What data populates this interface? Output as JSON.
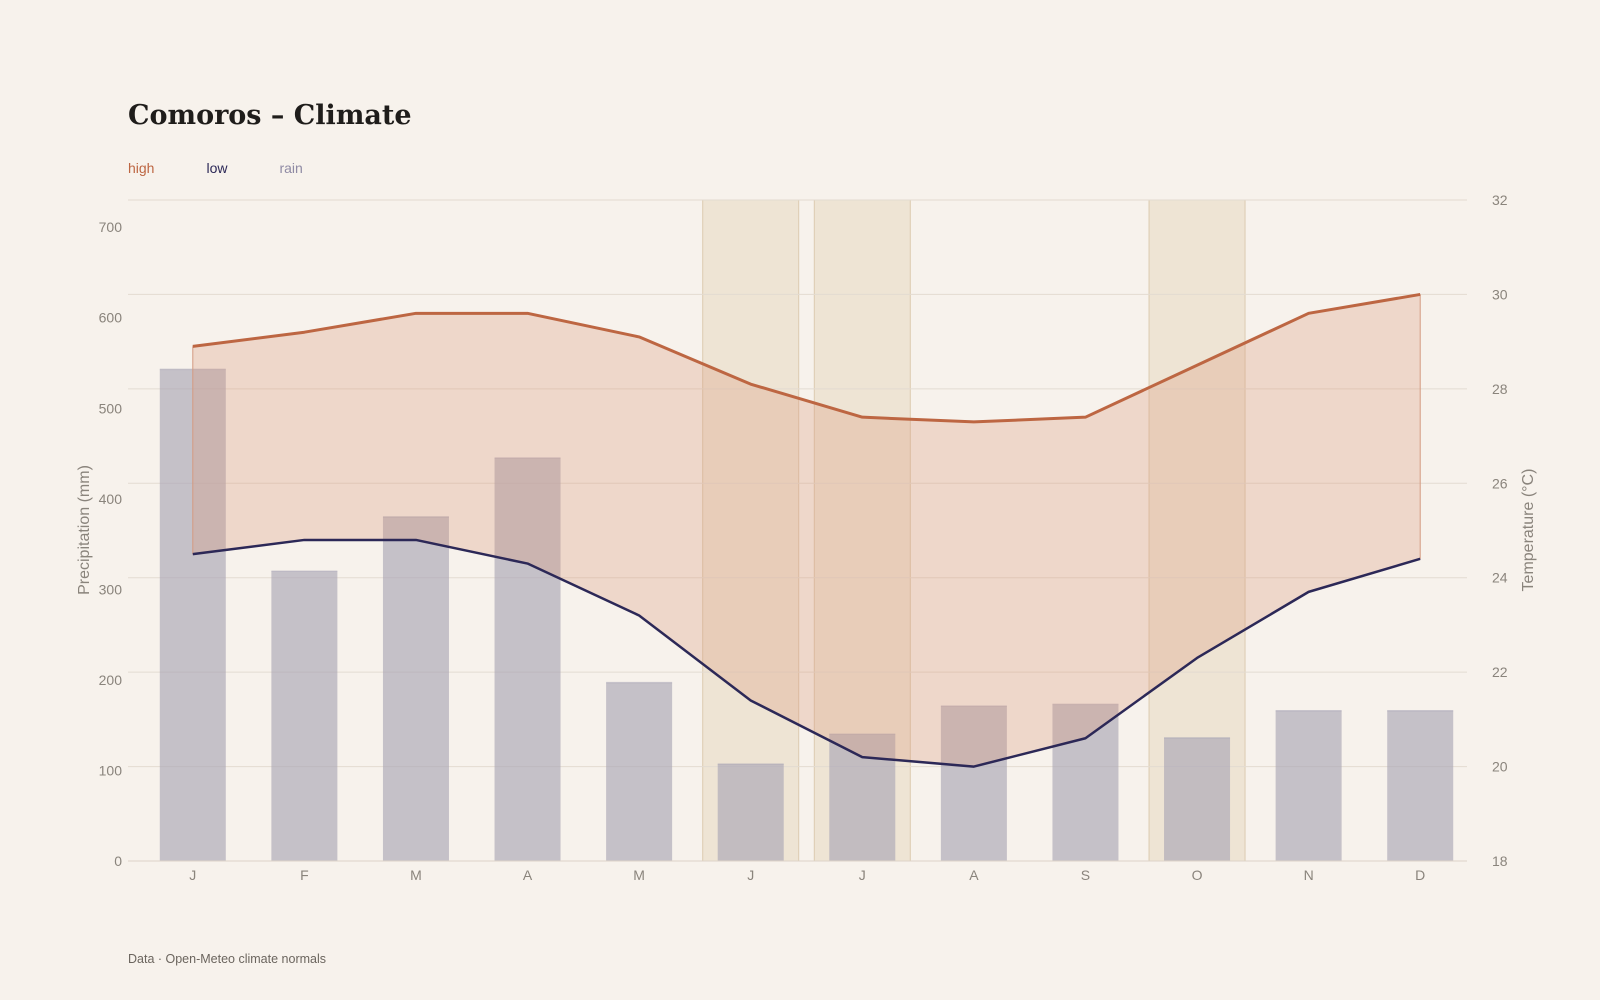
{
  "chart_data": {
    "type": "bar+line",
    "title": "Comoros – Climate",
    "source": "Data · Open-Meteo climate normals",
    "categories": [
      "J",
      "F",
      "M",
      "A",
      "M",
      "J",
      "J",
      "A",
      "S",
      "O",
      "N",
      "D"
    ],
    "legend": [
      "high",
      "low",
      "rain"
    ],
    "legend_placement": "top-left",
    "series": [
      {
        "name": "rain",
        "type": "bar",
        "axis": "left",
        "color": "#aaa6b6",
        "values": [
          543,
          320,
          380,
          445,
          197,
          107,
          140,
          171,
          173,
          136,
          166,
          166
        ]
      },
      {
        "name": "high",
        "type": "line",
        "axis": "right",
        "color": "#bd6642",
        "values": [
          28.9,
          29.2,
          29.6,
          29.6,
          29.1,
          28.1,
          27.4,
          27.3,
          27.4,
          28.5,
          29.6,
          30.0
        ]
      },
      {
        "name": "low",
        "type": "line",
        "axis": "right",
        "color": "#2c2857",
        "values": [
          24.5,
          24.8,
          24.8,
          24.3,
          23.2,
          21.4,
          20.2,
          20.0,
          20.6,
          22.3,
          23.7,
          24.4
        ]
      }
    ],
    "highlighted_months": [
      5,
      6,
      9
    ],
    "y_left": {
      "label": "Precipitation (mm)",
      "min": 0,
      "max": 730,
      "ticks": [
        0,
        100,
        200,
        300,
        400,
        500,
        600,
        700
      ]
    },
    "y_right": {
      "label": "Temperature (°C)",
      "min": 18,
      "max": 32,
      "ticks": [
        18,
        20,
        22,
        24,
        26,
        28,
        30,
        32
      ]
    },
    "grid": true
  }
}
